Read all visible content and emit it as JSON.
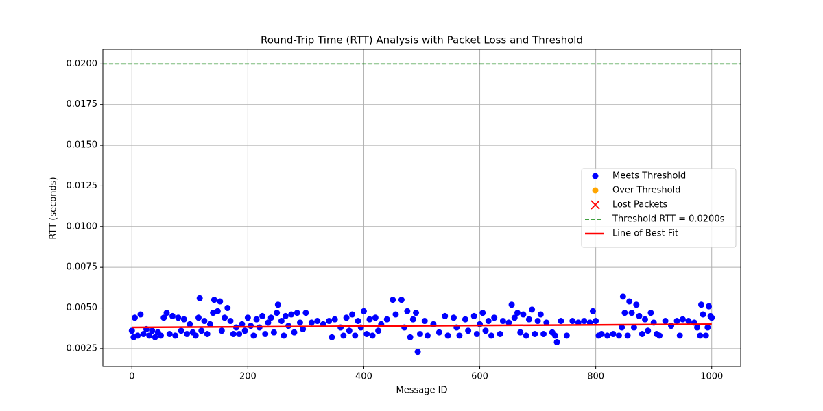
{
  "chart_data": {
    "type": "scatter",
    "title": "Round-Trip Time (RTT) Analysis with Packet Loss and Threshold",
    "xlabel": "Message ID",
    "ylabel": "RTT (seconds)",
    "xlim": [
      -50,
      1050
    ],
    "ylim": [
      0.0014,
      0.0209
    ],
    "xticks": [
      0,
      200,
      400,
      600,
      800,
      1000
    ],
    "yticks": [
      0.0025,
      {
        "value": 0.005,
        "label": "0.0050"
      },
      0.0075,
      {
        "value": 0.01,
        "label": "0.0100"
      },
      0.0125,
      {
        "value": 0.015,
        "label": "0.0150"
      },
      0.0175,
      {
        "value": 0.02,
        "label": "0.0200"
      }
    ],
    "grid": true,
    "legend": "center right",
    "series": [
      {
        "name": "Meets Threshold",
        "kind": "scatter",
        "marker": "o",
        "color": "#0000ff",
        "x": [
          0,
          3,
          5,
          10,
          15,
          20,
          25,
          30,
          35,
          40,
          45,
          50,
          55,
          60,
          65,
          70,
          75,
          80,
          85,
          90,
          95,
          100,
          105,
          110,
          115,
          117,
          120,
          125,
          130,
          135,
          140,
          142,
          148,
          152,
          155,
          160,
          165,
          170,
          175,
          180,
          185,
          190,
          195,
          200,
          205,
          210,
          215,
          220,
          225,
          230,
          235,
          240,
          245,
          250,
          252,
          258,
          262,
          265,
          270,
          275,
          280,
          285,
          290,
          295,
          300,
          310,
          320,
          330,
          340,
          345,
          350,
          360,
          365,
          370,
          375,
          380,
          385,
          390,
          395,
          400,
          405,
          410,
          415,
          420,
          425,
          430,
          440,
          450,
          455,
          465,
          470,
          475,
          480,
          485,
          490,
          493,
          497,
          505,
          510,
          520,
          530,
          540,
          545,
          555,
          560,
          565,
          575,
          580,
          590,
          595,
          600,
          605,
          610,
          615,
          620,
          625,
          635,
          640,
          650,
          655,
          660,
          665,
          670,
          675,
          680,
          685,
          690,
          695,
          700,
          705,
          710,
          715,
          725,
          730,
          733,
          740,
          750,
          760,
          770,
          780,
          790,
          795,
          800,
          805,
          810,
          820,
          830,
          840,
          845,
          847,
          850,
          855,
          858,
          862,
          866,
          870,
          875,
          880,
          885,
          890,
          895,
          900,
          905,
          910,
          920,
          930,
          940,
          945,
          950,
          960,
          970,
          975,
          980,
          982,
          985,
          990,
          993,
          995,
          998,
          1000
        ],
        "values": [
          0.0036,
          0.0032,
          0.0044,
          0.0033,
          0.0046,
          0.0034,
          0.0037,
          0.0033,
          0.0036,
          0.0032,
          0.0035,
          0.0033,
          0.0044,
          0.0047,
          0.0034,
          0.0045,
          0.0033,
          0.0044,
          0.0036,
          0.0043,
          0.0034,
          0.004,
          0.0035,
          0.0033,
          0.0044,
          0.0056,
          0.0036,
          0.0042,
          0.0034,
          0.004,
          0.0047,
          0.0055,
          0.0048,
          0.0054,
          0.0036,
          0.0044,
          0.005,
          0.0042,
          0.0034,
          0.0038,
          0.0034,
          0.004,
          0.0036,
          0.0044,
          0.0039,
          0.0033,
          0.0043,
          0.0038,
          0.0045,
          0.0034,
          0.0041,
          0.0044,
          0.0035,
          0.0047,
          0.0052,
          0.0042,
          0.0033,
          0.0045,
          0.0039,
          0.0046,
          0.0035,
          0.0047,
          0.0041,
          0.0037,
          0.0047,
          0.0041,
          0.0042,
          0.004,
          0.0042,
          0.0032,
          0.0043,
          0.0038,
          0.0033,
          0.0044,
          0.0036,
          0.0046,
          0.0033,
          0.0042,
          0.0038,
          0.0048,
          0.0034,
          0.0043,
          0.0033,
          0.0044,
          0.0036,
          0.004,
          0.0043,
          0.0055,
          0.0046,
          0.0055,
          0.0038,
          0.0048,
          0.0032,
          0.0043,
          0.0047,
          0.0023,
          0.0034,
          0.0042,
          0.0033,
          0.004,
          0.0035,
          0.0045,
          0.0033,
          0.0044,
          0.0038,
          0.0033,
          0.0043,
          0.0036,
          0.0045,
          0.0034,
          0.004,
          0.0047,
          0.0036,
          0.0042,
          0.0033,
          0.0044,
          0.0034,
          0.0042,
          0.0041,
          0.0052,
          0.0044,
          0.0047,
          0.0035,
          0.0046,
          0.0033,
          0.0043,
          0.0049,
          0.0034,
          0.0042,
          0.0046,
          0.0034,
          0.0041,
          0.0035,
          0.0033,
          0.0029,
          0.0042,
          0.0033,
          0.0042,
          0.0041,
          0.0042,
          0.0041,
          0.0048,
          0.0042,
          0.0033,
          0.0034,
          0.0033,
          0.0034,
          0.0033,
          0.0038,
          0.0057,
          0.0047,
          0.0033,
          0.0054,
          0.0047,
          0.0038,
          0.0052,
          0.0045,
          0.0034,
          0.0043,
          0.0036,
          0.0047,
          0.0041,
          0.0034,
          0.0033,
          0.0042,
          0.0039,
          0.0042,
          0.0033,
          0.0043,
          0.0042,
          0.0041,
          0.0038,
          0.0033,
          0.0052,
          0.0046,
          0.0033,
          0.0038,
          0.0051,
          0.0045,
          0.0044
        ]
      },
      {
        "name": "Over Threshold",
        "kind": "scatter",
        "marker": "o",
        "color": "#ffa500",
        "x": [],
        "values": []
      },
      {
        "name": "Lost Packets",
        "kind": "scatter",
        "marker": "x",
        "color": "#ff0000",
        "x": [],
        "values": []
      },
      {
        "name": "Threshold RTT = 0.0200s",
        "kind": "hline",
        "linestyle": "dashed",
        "color": "#008000",
        "values": [
          0.02
        ]
      },
      {
        "name": "Line of Best Fit",
        "kind": "line",
        "linestyle": "solid",
        "color": "#ff0000",
        "x": [
          0,
          1000
        ],
        "values": [
          0.0038,
          0.004
        ]
      }
    ]
  }
}
